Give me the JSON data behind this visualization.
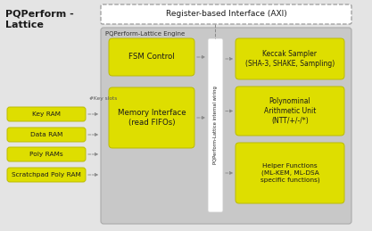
{
  "bg_color": "#e4e4e4",
  "yellow": "#dede00",
  "engine_bg": "#c8c8c8",
  "white": "#ffffff",
  "gray_line": "#888888",
  "title": "PQPerform -\nLattice",
  "engine_label": "PQPerform-Lattice Engine",
  "axi_label": "Register-based Interface (AXI)",
  "fsm_label": "FSM Control",
  "mem_label": "Memory Interface\n(read FIFOs)",
  "wiring_label": "PQPerform-Lattice internal wiring",
  "keccak_label": "Keccak Sampler\n(SHA-3, SHAKE, Sampling)",
  "poly_arith_label": "Polynominal\nArithmetic Unit\n(NTT/+/-/*)",
  "helper_label": "Helper Functions\n(ML-KEM, ML-DSA\nspecific functions)",
  "key_ram_label": "Key RAM",
  "data_ram_label": "Data RAM",
  "poly_rams_label": "Poly RAMs",
  "scratch_label": "Scratchpad Poly RAM",
  "key_slots_label": "#Key slots"
}
